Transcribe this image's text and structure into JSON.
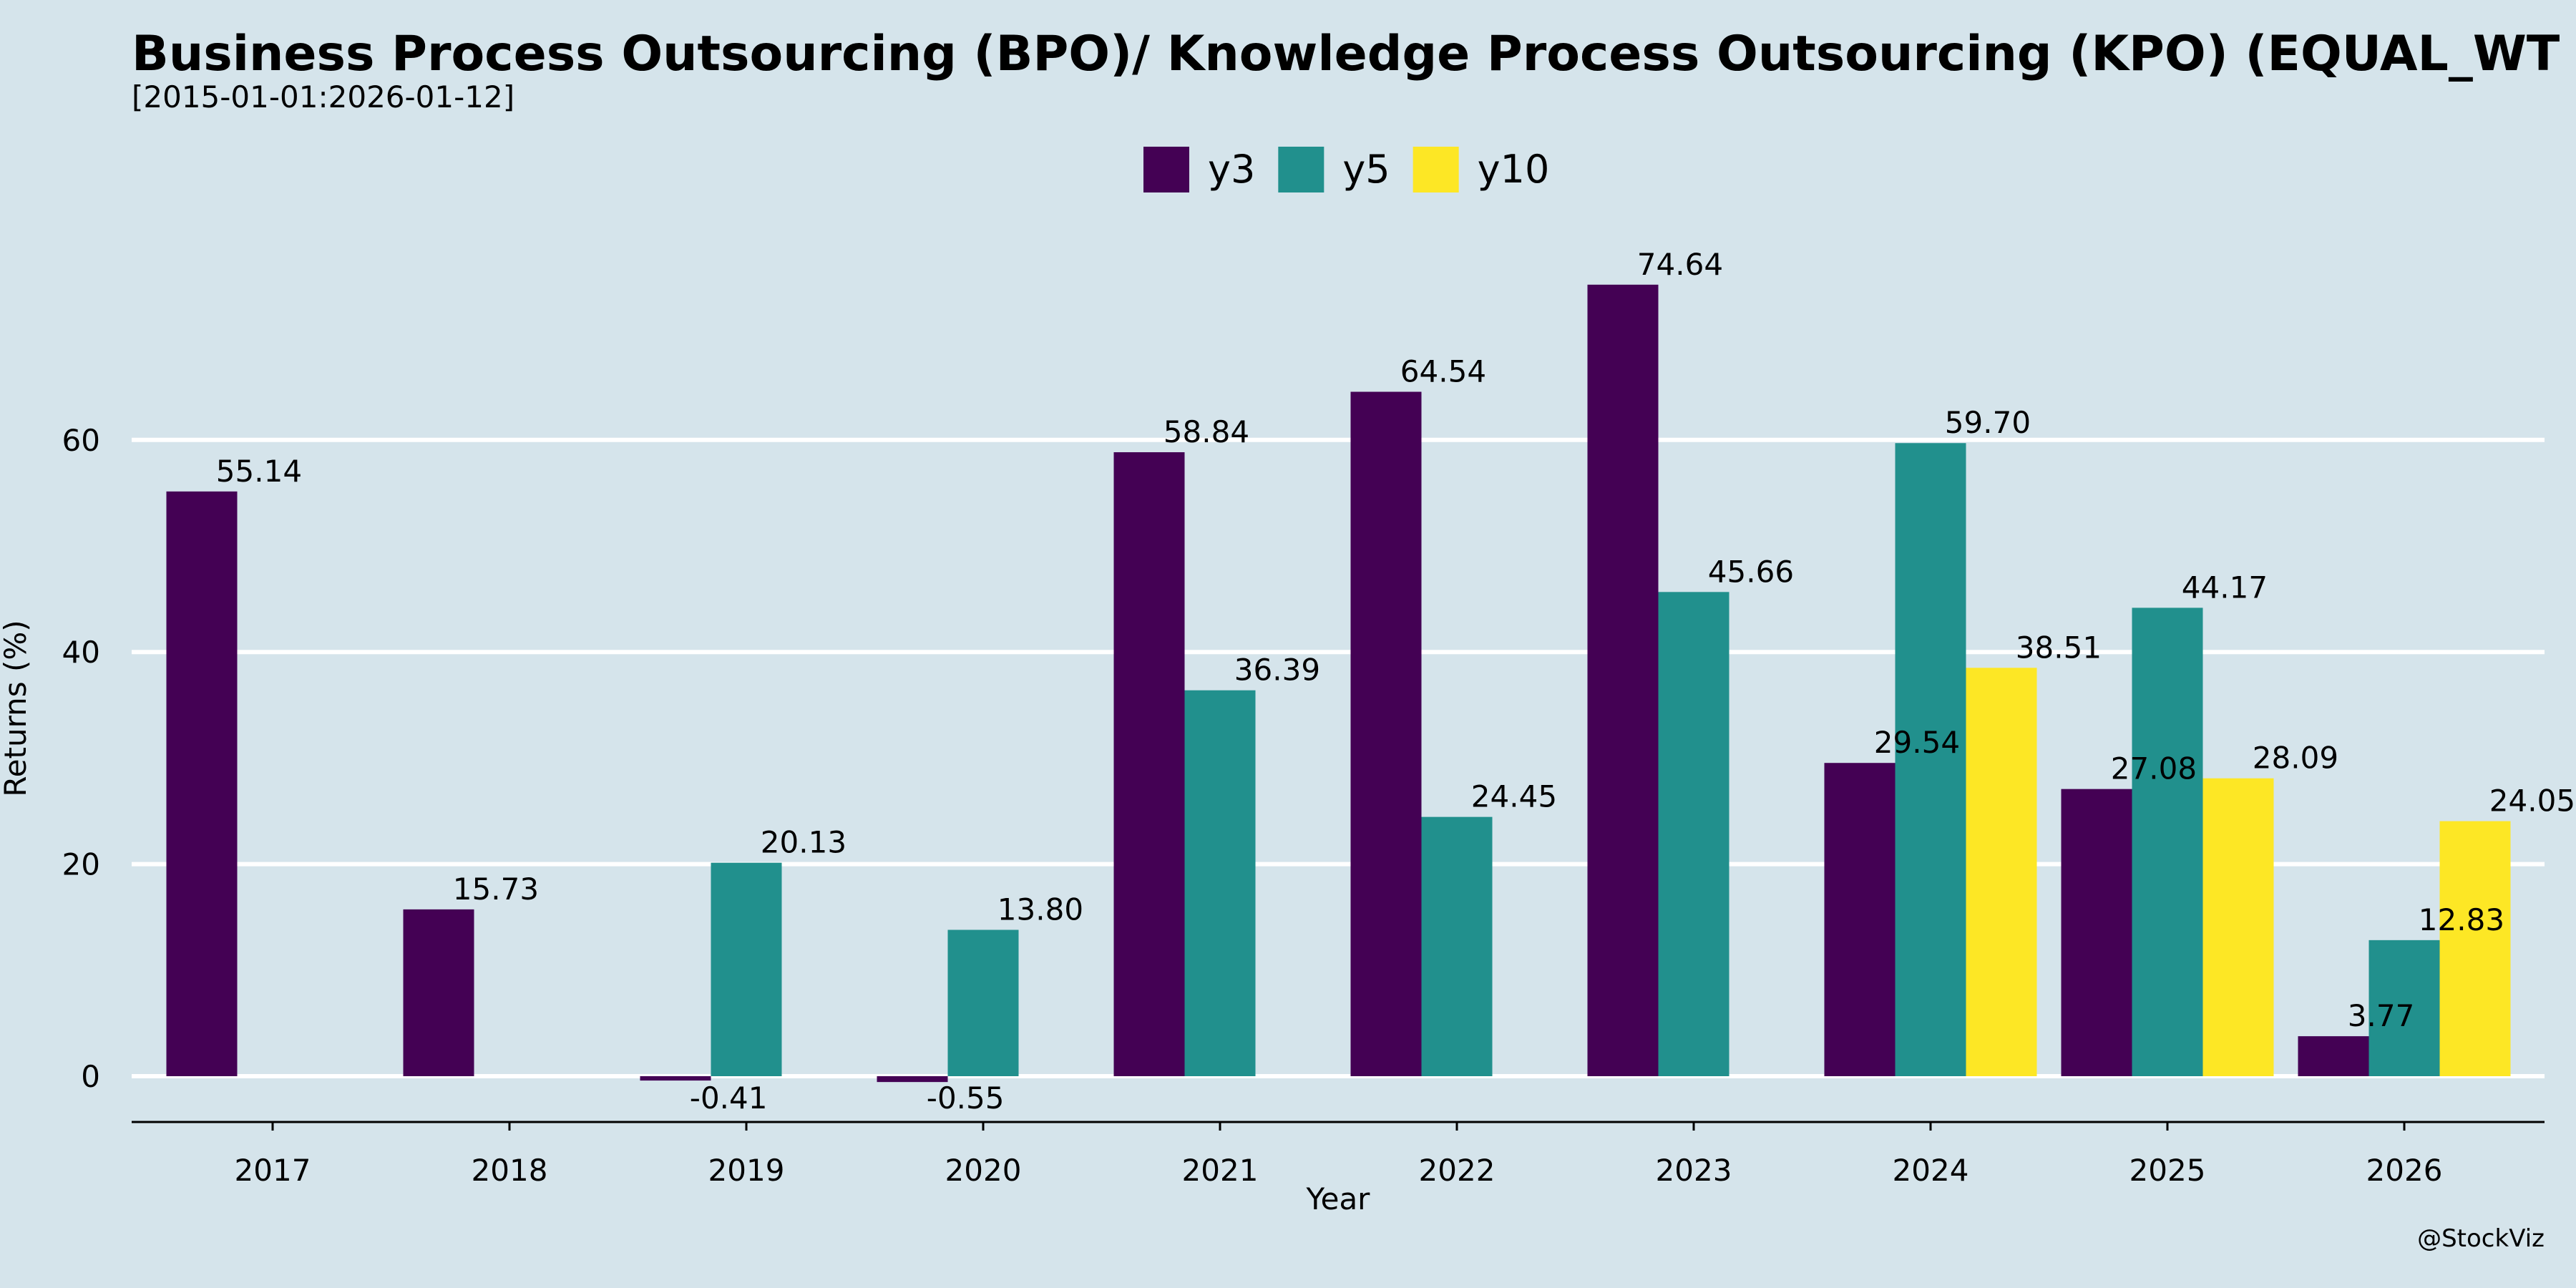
{
  "chart_data": {
    "type": "bar",
    "title": "Business Process Outsourcing (BPO)/ Knowledge Process Outsourcing (KPO) (EQUAL_WT",
    "subtitle": "[2015-01-01:2026-01-12]",
    "xlabel": "Year",
    "ylabel": "Returns (%)",
    "ylim": [
      -4,
      82
    ],
    "yticks": [
      0,
      20,
      40,
      60
    ],
    "grid": true,
    "legend_placement": "top-center",
    "categories": [
      "2017",
      "2018",
      "2019",
      "2020",
      "2021",
      "2022",
      "2023",
      "2024",
      "2025",
      "2026"
    ],
    "series": [
      {
        "name": "y3",
        "color": "#440154",
        "values": [
          55.14,
          15.73,
          -0.41,
          -0.55,
          58.84,
          64.54,
          74.64,
          29.54,
          27.08,
          3.77
        ]
      },
      {
        "name": "y5",
        "color": "#21908d",
        "values": [
          null,
          null,
          20.13,
          13.8,
          36.39,
          24.45,
          45.66,
          59.7,
          44.17,
          12.83
        ]
      },
      {
        "name": "y10",
        "color": "#fde725",
        "values": [
          null,
          null,
          null,
          null,
          null,
          null,
          null,
          38.51,
          28.09,
          24.05
        ]
      }
    ],
    "watermark": "@StockViz"
  }
}
